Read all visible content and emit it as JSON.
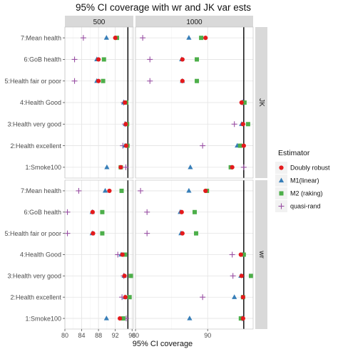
{
  "chart_data": {
    "type": "scatter",
    "title": "95% CI coverage with wr and JK var ests",
    "xlabel": "95% CI coverage",
    "ylabel": "",
    "categories": [
      "7:Mean health",
      "6:GoB health",
      "5:Health fair or poor",
      "4:Health Good",
      "3:Health very good",
      "2:Health excellent",
      "1:Smoke100"
    ],
    "columns": [
      "500",
      "1000"
    ],
    "rows": [
      "JK",
      "wr"
    ],
    "reference_line": 95,
    "panels": [
      {
        "row": "JK",
        "col": "500",
        "xlim": [
          80,
          96.3
        ],
        "xticks": [
          80,
          84,
          88,
          92,
          96
        ],
        "points": {
          "dr": [
            92.0,
            88.0,
            88.0,
            94.3,
            94.5,
            94.6,
            93.3
          ],
          "m1": [
            89.9,
            87.6,
            87.6,
            94.0,
            94.4,
            94.3,
            90.0
          ],
          "m2": [
            92.4,
            89.3,
            89.1,
            94.6,
            94.8,
            94.9,
            93.3
          ],
          "qr": [
            84.4,
            82.3,
            82.3,
            94.0,
            94.3,
            93.8,
            94.5
          ]
        }
      },
      {
        "row": "JK",
        "col": "1000",
        "xlim": [
          80,
          96.3
        ],
        "xticks": [
          80,
          90
        ],
        "points": {
          "dr": [
            89.7,
            86.5,
            86.5,
            94.7,
            94.9,
            95.0,
            93.4
          ],
          "m1": [
            87.4,
            86.4,
            86.5,
            94.9,
            94.7,
            94.1,
            87.6
          ],
          "m2": [
            89.1,
            88.5,
            88.5,
            95.1,
            95.6,
            94.5,
            93.2
          ],
          "qr": [
            81.0,
            82.0,
            82.0,
            94.8,
            93.7,
            89.3,
            95.0
          ]
        }
      },
      {
        "row": "wr",
        "col": "500",
        "xlim": [
          80,
          96.3
        ],
        "xticks": [
          80,
          84,
          88,
          92,
          96
        ],
        "points": {
          "dr": [
            90.6,
            86.6,
            86.7,
            93.7,
            94.2,
            94.4,
            93.1
          ],
          "m1": [
            89.6,
            86.5,
            86.5,
            93.4,
            94.1,
            94.3,
            89.9
          ],
          "m2": [
            93.5,
            88.9,
            88.9,
            94.3,
            95.7,
            95.4,
            93.9
          ],
          "qr": [
            83.3,
            80.6,
            80.6,
            92.6,
            94.0,
            93.6,
            94.6
          ]
        }
      },
      {
        "row": "wr",
        "col": "1000",
        "xlim": [
          80,
          96.3
        ],
        "xticks": [
          80,
          90
        ],
        "points": {
          "dr": [
            89.7,
            86.4,
            86.5,
            94.6,
            94.7,
            94.9,
            94.9
          ],
          "m1": [
            87.4,
            86.2,
            86.3,
            94.9,
            94.6,
            93.7,
            87.5
          ],
          "m2": [
            89.9,
            88.2,
            88.4,
            95.0,
            96.0,
            94.9,
            94.6
          ],
          "qr": [
            80.7,
            81.6,
            81.6,
            93.4,
            93.5,
            89.3,
            94.8
          ]
        }
      }
    ],
    "legend": {
      "title": "Estimator",
      "position": "right",
      "items": [
        {
          "key": "dr",
          "label": "Doubly robust",
          "color": "#e41a1c",
          "shape": "circle"
        },
        {
          "key": "m1",
          "label": "M1(linear)",
          "color": "#377eb8",
          "shape": "triangle"
        },
        {
          "key": "m2",
          "label": "M2 (raking)",
          "color": "#4daf4a",
          "shape": "square"
        },
        {
          "key": "qr",
          "label": "quasi-rand",
          "color": "#984ea3",
          "shape": "plus"
        }
      ]
    },
    "grid": true
  }
}
